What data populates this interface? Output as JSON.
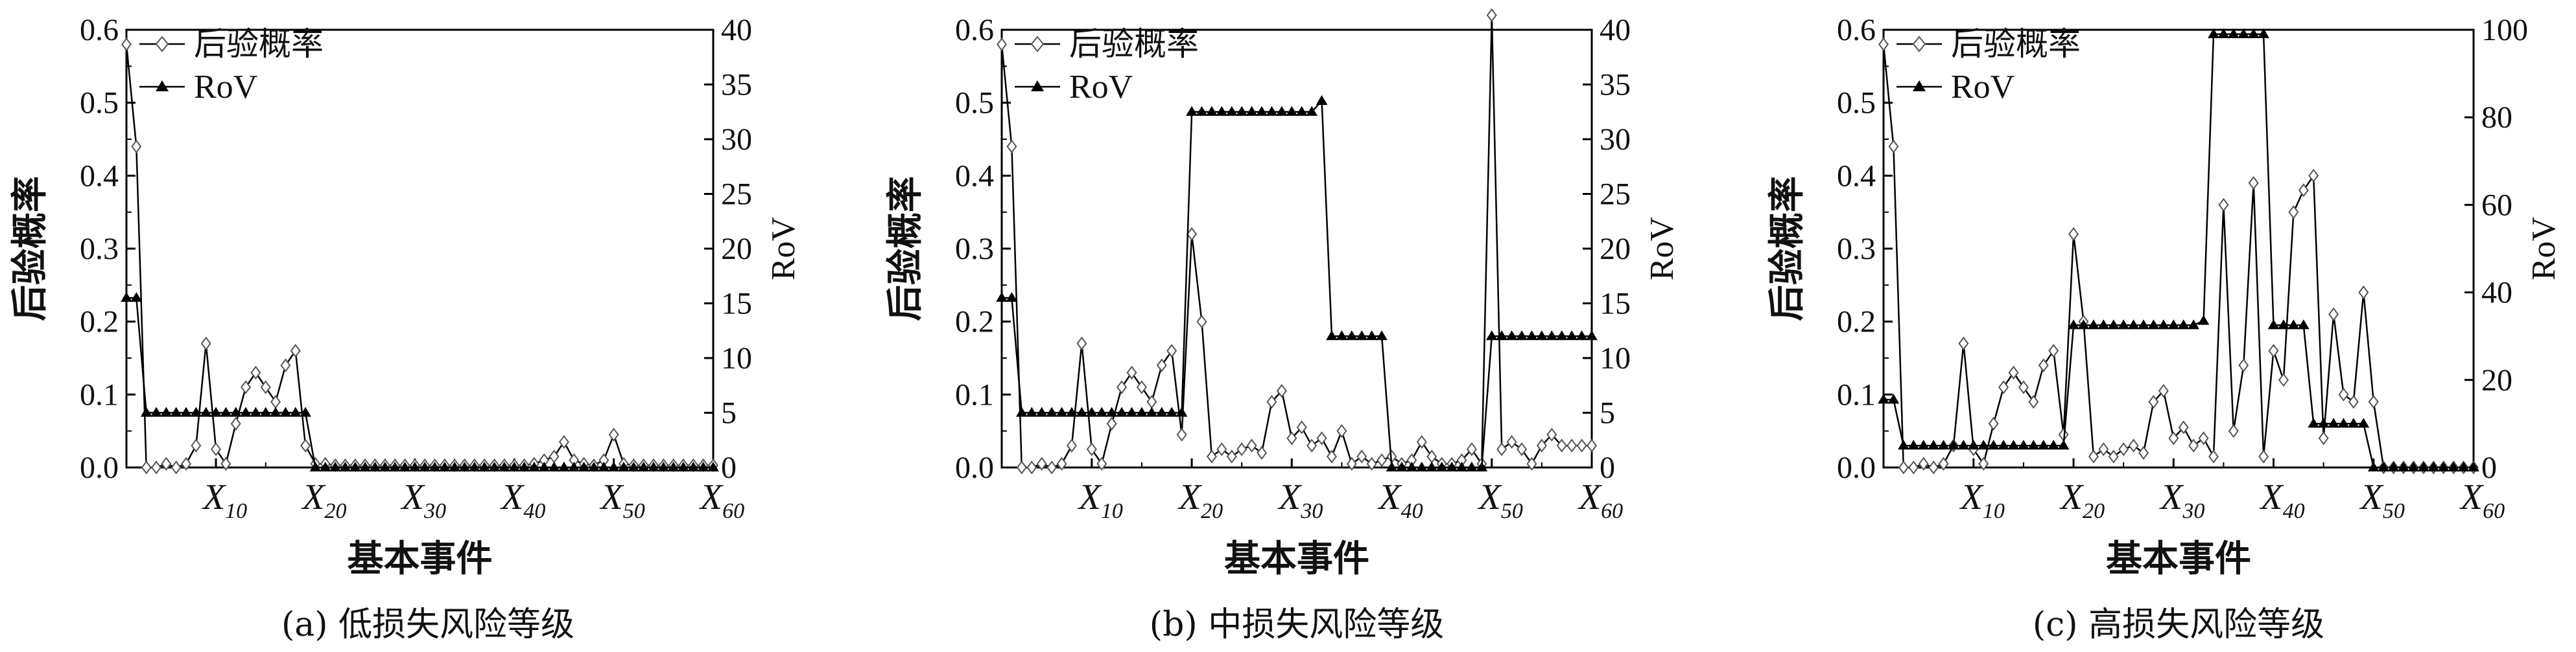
{
  "chart_data": [
    {
      "type": "line",
      "caption": "(a) 低损失风险等级",
      "xlabel": "基本事件",
      "ylabel": "后验概率",
      "y2label": "RoV",
      "xlim": [
        1,
        60
      ],
      "ylim": [
        0,
        0.6
      ],
      "y2lim": [
        0,
        40
      ],
      "yticks": [
        "0.0",
        "0.1",
        "0.2",
        "0.3",
        "0.4",
        "0.5",
        "0.6"
      ],
      "y2ticks": [
        "0",
        "5",
        "10",
        "15",
        "20",
        "25",
        "30",
        "35",
        "40"
      ],
      "xticks": [
        {
          "x": 10,
          "base": "X",
          "sub": "10"
        },
        {
          "x": 20,
          "base": "X",
          "sub": "20"
        },
        {
          "x": 30,
          "base": "X",
          "sub": "30"
        },
        {
          "x": 40,
          "base": "X",
          "sub": "40"
        },
        {
          "x": 50,
          "base": "X",
          "sub": "50"
        },
        {
          "x": 60,
          "base": "X",
          "sub": "60"
        }
      ],
      "legend": [
        {
          "name": "后验概率",
          "marker": "diamond-open"
        },
        {
          "name": "RoV",
          "marker": "triangle-filled"
        }
      ],
      "series": [
        {
          "name": "后验概率",
          "axis": "left",
          "x": [
            1,
            2,
            3,
            4,
            5,
            6,
            7,
            8,
            9,
            10,
            11,
            12,
            13,
            14,
            15,
            16,
            17,
            18,
            19,
            20,
            21,
            22,
            23,
            24,
            25,
            26,
            27,
            28,
            29,
            30,
            31,
            32,
            33,
            34,
            35,
            36,
            37,
            38,
            39,
            40,
            41,
            42,
            43,
            44,
            45,
            46,
            47,
            48,
            49,
            50,
            51,
            52,
            53,
            54,
            55,
            56,
            57,
            58,
            59,
            60
          ],
          "values": [
            0.58,
            0.44,
            0.0,
            0.0,
            0.005,
            0.0,
            0.005,
            0.03,
            0.17,
            0.025,
            0.005,
            0.06,
            0.11,
            0.13,
            0.11,
            0.09,
            0.14,
            0.16,
            0.03,
            0.005,
            0.005,
            0.003,
            0.003,
            0.003,
            0.003,
            0.003,
            0.003,
            0.003,
            0.003,
            0.003,
            0.003,
            0.003,
            0.003,
            0.003,
            0.003,
            0.003,
            0.003,
            0.003,
            0.003,
            0.003,
            0.003,
            0.005,
            0.01,
            0.015,
            0.035,
            0.01,
            0.005,
            0.003,
            0.01,
            0.045,
            0.005,
            0.003,
            0.003,
            0.003,
            0.003,
            0.003,
            0.003,
            0.003,
            0.003,
            0.003
          ]
        },
        {
          "name": "RoV",
          "axis": "right",
          "x": [
            1,
            2,
            3,
            4,
            5,
            6,
            7,
            8,
            9,
            10,
            11,
            12,
            13,
            14,
            15,
            16,
            17,
            18,
            19,
            20,
            21,
            22,
            23,
            24,
            25,
            26,
            27,
            28,
            29,
            30,
            31,
            32,
            33,
            34,
            35,
            36,
            37,
            38,
            39,
            40,
            41,
            42,
            43,
            44,
            45,
            46,
            47,
            48,
            49,
            50,
            51,
            52,
            53,
            54,
            55,
            56,
            57,
            58,
            59,
            60
          ],
          "values": [
            15.5,
            15.5,
            5,
            5,
            5,
            5,
            5,
            5,
            5,
            5,
            5,
            5,
            5,
            5,
            5,
            5,
            5,
            5,
            5,
            0,
            0,
            0,
            0,
            0,
            0,
            0,
            0,
            0,
            0,
            0,
            0,
            0,
            0,
            0,
            0,
            0,
            0,
            0,
            0,
            0,
            0,
            0,
            0,
            0,
            0,
            0,
            0,
            0,
            0,
            0,
            0,
            0,
            0,
            0,
            0,
            0,
            0,
            0,
            0,
            0
          ]
        }
      ]
    },
    {
      "type": "line",
      "caption": "(b) 中损失风险等级",
      "xlabel": "基本事件",
      "ylabel": "后验概率",
      "y2label": "RoV",
      "xlim": [
        1,
        60
      ],
      "ylim": [
        0,
        0.6
      ],
      "y2lim": [
        0,
        40
      ],
      "yticks": [
        "0.0",
        "0.1",
        "0.2",
        "0.3",
        "0.4",
        "0.5",
        "0.6"
      ],
      "y2ticks": [
        "0",
        "5",
        "10",
        "15",
        "20",
        "25",
        "30",
        "35",
        "40"
      ],
      "xticks": [
        {
          "x": 10,
          "base": "X",
          "sub": "10"
        },
        {
          "x": 20,
          "base": "X",
          "sub": "20"
        },
        {
          "x": 30,
          "base": "X",
          "sub": "30"
        },
        {
          "x": 40,
          "base": "X",
          "sub": "40"
        },
        {
          "x": 50,
          "base": "X",
          "sub": "50"
        },
        {
          "x": 60,
          "base": "X",
          "sub": "60"
        }
      ],
      "legend": [
        {
          "name": "后验概率",
          "marker": "diamond-open"
        },
        {
          "name": "RoV",
          "marker": "triangle-filled"
        }
      ],
      "series": [
        {
          "name": "后验概率",
          "axis": "left",
          "x": [
            1,
            2,
            3,
            4,
            5,
            6,
            7,
            8,
            9,
            10,
            11,
            12,
            13,
            14,
            15,
            16,
            17,
            18,
            19,
            20,
            21,
            22,
            23,
            24,
            25,
            26,
            27,
            28,
            29,
            30,
            31,
            32,
            33,
            34,
            35,
            36,
            37,
            38,
            39,
            40,
            41,
            42,
            43,
            44,
            45,
            46,
            47,
            48,
            49,
            50,
            51,
            52,
            53,
            54,
            55,
            56,
            57,
            58,
            59,
            60
          ],
          "values": [
            0.58,
            0.44,
            0.0,
            0.0,
            0.005,
            0.0,
            0.005,
            0.03,
            0.17,
            0.025,
            0.005,
            0.06,
            0.11,
            0.13,
            0.11,
            0.09,
            0.14,
            0.16,
            0.045,
            0.32,
            0.2,
            0.015,
            0.025,
            0.015,
            0.025,
            0.03,
            0.02,
            0.09,
            0.105,
            0.04,
            0.055,
            0.03,
            0.04,
            0.015,
            0.05,
            0.005,
            0.015,
            0.005,
            0.01,
            0.015,
            0.005,
            0.01,
            0.035,
            0.015,
            0.005,
            0.005,
            0.01,
            0.025,
            0.005,
            0.62,
            0.025,
            0.035,
            0.025,
            0.005,
            0.03,
            0.045,
            0.03,
            0.03,
            0.03,
            0.03
          ]
        },
        {
          "name": "RoV",
          "axis": "right",
          "x": [
            1,
            2,
            3,
            4,
            5,
            6,
            7,
            8,
            9,
            10,
            11,
            12,
            13,
            14,
            15,
            16,
            17,
            18,
            19,
            20,
            21,
            22,
            23,
            24,
            25,
            26,
            27,
            28,
            29,
            30,
            31,
            32,
            33,
            34,
            35,
            36,
            37,
            38,
            39,
            40,
            41,
            42,
            43,
            44,
            45,
            46,
            47,
            48,
            49,
            50,
            51,
            52,
            53,
            54,
            55,
            56,
            57,
            58,
            59,
            60
          ],
          "values": [
            15.5,
            15.5,
            5,
            5,
            5,
            5,
            5,
            5,
            5,
            5,
            5,
            5,
            5,
            5,
            5,
            5,
            5,
            5,
            5,
            32.5,
            32.5,
            32.5,
            32.5,
            32.5,
            32.5,
            32.5,
            32.5,
            32.5,
            32.5,
            32.5,
            32.5,
            32.5,
            33.5,
            12,
            12,
            12,
            12,
            12,
            12,
            0,
            0,
            0,
            0,
            0,
            0,
            0,
            0,
            0,
            0,
            12,
            12,
            12,
            12,
            12,
            12,
            12,
            12,
            12,
            12,
            12
          ]
        }
      ]
    },
    {
      "type": "line",
      "caption": "(c) 高损失风险等级",
      "xlabel": "基本事件",
      "ylabel": "后验概率",
      "y2label": "RoV",
      "xlim": [
        1,
        60
      ],
      "ylim": [
        0,
        0.6
      ],
      "y2lim": [
        0,
        100
      ],
      "yticks": [
        "0.0",
        "0.1",
        "0.2",
        "0.3",
        "0.4",
        "0.5",
        "0.6"
      ],
      "y2ticks": [
        "0",
        "20",
        "40",
        "60",
        "80",
        "100"
      ],
      "xticks": [
        {
          "x": 10,
          "base": "X",
          "sub": "10"
        },
        {
          "x": 20,
          "base": "X",
          "sub": "20"
        },
        {
          "x": 30,
          "base": "X",
          "sub": "30"
        },
        {
          "x": 40,
          "base": "X",
          "sub": "40"
        },
        {
          "x": 50,
          "base": "X",
          "sub": "50"
        },
        {
          "x": 60,
          "base": "X",
          "sub": "60"
        }
      ],
      "legend": [
        {
          "name": "后验概率",
          "marker": "diamond-open"
        },
        {
          "name": "RoV",
          "marker": "triangle-filled"
        }
      ],
      "series": [
        {
          "name": "后验概率",
          "axis": "left",
          "x": [
            1,
            2,
            3,
            4,
            5,
            6,
            7,
            8,
            9,
            10,
            11,
            12,
            13,
            14,
            15,
            16,
            17,
            18,
            19,
            20,
            21,
            22,
            23,
            24,
            25,
            26,
            27,
            28,
            29,
            30,
            31,
            32,
            33,
            34,
            35,
            36,
            37,
            38,
            39,
            40,
            41,
            42,
            43,
            44,
            45,
            46,
            47,
            48,
            49,
            50,
            51,
            52,
            53,
            54,
            55,
            56,
            57,
            58,
            59,
            60
          ],
          "values": [
            0.58,
            0.44,
            0.0,
            0.0,
            0.005,
            0.0,
            0.005,
            0.03,
            0.17,
            0.025,
            0.005,
            0.06,
            0.11,
            0.13,
            0.11,
            0.09,
            0.14,
            0.16,
            0.045,
            0.32,
            0.2,
            0.015,
            0.025,
            0.015,
            0.025,
            0.03,
            0.02,
            0.09,
            0.105,
            0.04,
            0.055,
            0.03,
            0.04,
            0.015,
            0.36,
            0.05,
            0.14,
            0.39,
            0.015,
            0.16,
            0.12,
            0.35,
            0.38,
            0.4,
            0.04,
            0.21,
            0.1,
            0.09,
            0.24,
            0.09,
            0.0,
            0.0,
            0.0,
            0.0,
            0.0,
            0.0,
            0.0,
            0.0,
            0.0,
            0.0
          ]
        },
        {
          "name": "RoV",
          "axis": "right",
          "x": [
            1,
            2,
            3,
            4,
            5,
            6,
            7,
            8,
            9,
            10,
            11,
            12,
            13,
            14,
            15,
            16,
            17,
            18,
            19,
            20,
            21,
            22,
            23,
            24,
            25,
            26,
            27,
            28,
            29,
            30,
            31,
            32,
            33,
            34,
            35,
            36,
            37,
            38,
            39,
            40,
            41,
            42,
            43,
            44,
            45,
            46,
            47,
            48,
            49,
            50,
            51,
            52,
            53,
            54,
            55,
            56,
            57,
            58,
            59,
            60
          ],
          "values": [
            15.5,
            15.5,
            5,
            5,
            5,
            5,
            5,
            5,
            5,
            5,
            5,
            5,
            5,
            5,
            5,
            5,
            5,
            5,
            5,
            32.5,
            32.5,
            32.5,
            32.5,
            32.5,
            32.5,
            32.5,
            32.5,
            32.5,
            32.5,
            32.5,
            32.5,
            32.5,
            33.5,
            99,
            99,
            99,
            99,
            99,
            99,
            32.5,
            32.5,
            32.5,
            32.5,
            10,
            10,
            10,
            10,
            10,
            10,
            0,
            0,
            0,
            0,
            0,
            0,
            0,
            0,
            0,
            0,
            0
          ]
        }
      ]
    }
  ]
}
